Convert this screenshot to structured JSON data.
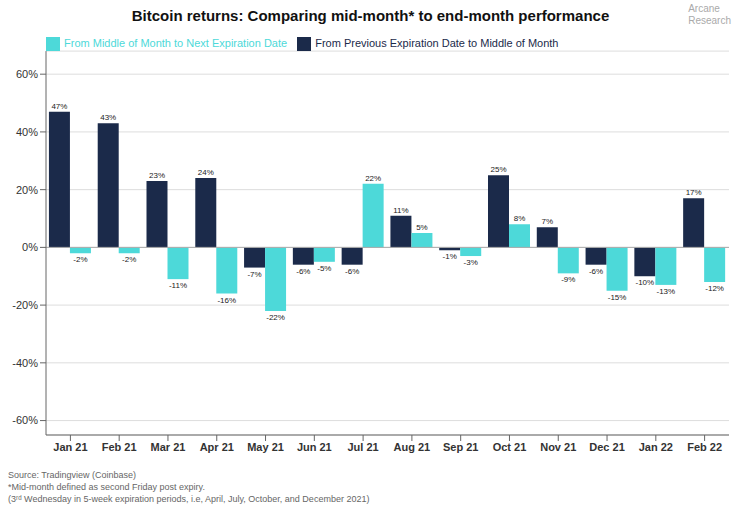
{
  "chart_data": {
    "type": "bar",
    "title": "Bitcoin returns: Comparing mid-month* to end-month performance",
    "categories": [
      "Jan 21",
      "Feb 21",
      "Mar 21",
      "Apr 21",
      "May 21",
      "Jun 21",
      "Jul 21",
      "Aug 21",
      "Sep 21",
      "Oct 21",
      "Nov 21",
      "Dec 21",
      "Jan 22",
      "Feb 22"
    ],
    "series": [
      {
        "name": "From Previous Expiration Date to Middle of Month",
        "color": "#1b2a4a",
        "values": [
          47,
          43,
          23,
          24,
          -7,
          -6,
          -6,
          11,
          -1,
          25,
          7,
          -6,
          -10,
          17
        ],
        "value_labels": [
          "47%",
          "43%",
          "23%",
          "24%",
          "-7%",
          "-6%",
          "-6%",
          "11%",
          "-1%",
          "25%",
          "7%",
          "-6%",
          "-10%",
          "17%"
        ]
      },
      {
        "name": "From Middle of Month to Next Expiration Date",
        "color": "#4dd9d9",
        "values": [
          -2,
          -2,
          -11,
          -16,
          -22,
          -5,
          22,
          5,
          -3,
          8,
          -9,
          -15,
          -13,
          -12
        ],
        "value_labels": [
          "-2%",
          "-2%",
          "-11%",
          "-16%",
          "-22%",
          "-5%",
          "22%",
          "5%",
          "-3%",
          "8%",
          "-9%",
          "-15%",
          "-13%",
          "-12%"
        ]
      }
    ],
    "ylim": [
      -65,
      68
    ],
    "yticks": [
      {
        "value": -60,
        "label": "-60%"
      },
      {
        "value": -40,
        "label": "-40%"
      },
      {
        "value": -20,
        "label": "-20%"
      },
      {
        "value": 0,
        "label": "0%"
      },
      {
        "value": 20,
        "label": "20%"
      },
      {
        "value": 40,
        "label": "40%"
      },
      {
        "value": 60,
        "label": "60%"
      }
    ],
    "grid": true,
    "legend": "upper left",
    "data_labels": true,
    "annotations": [
      "Source: Tradingview (Coinbase)",
      "*Mid-month defined as second Friday post expiry.\n(3ʳᵈ Wednesday in 5-week expiration periods, i.e, April, July, October, and December 2021)",
      "Arcane",
      "Research"
    ]
  }
}
